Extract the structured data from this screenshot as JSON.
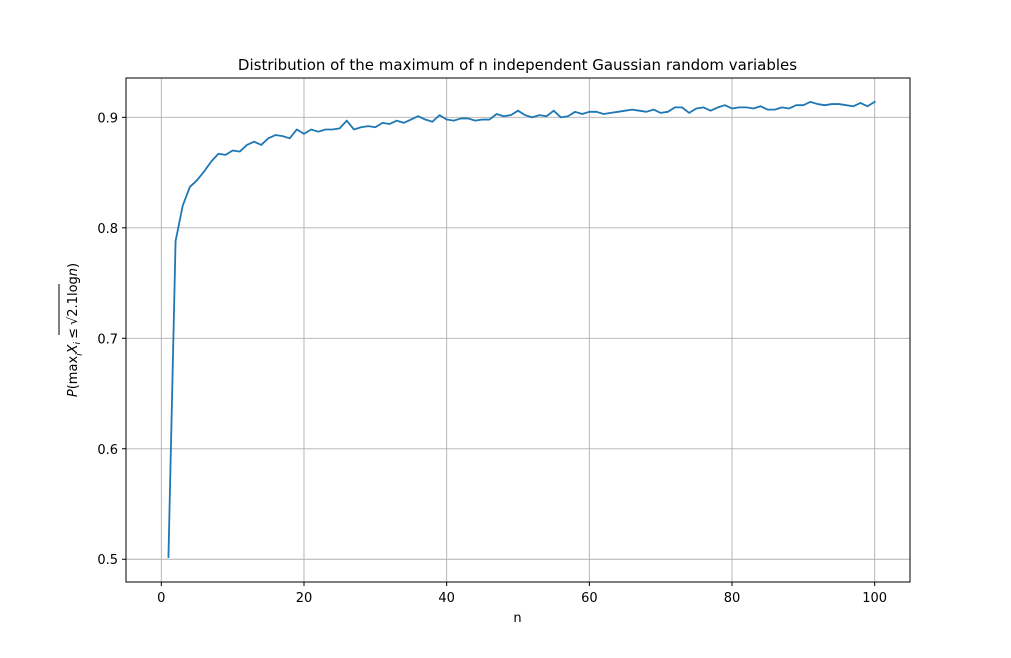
{
  "chart_data": {
    "type": "line",
    "title": "Distribution of the maximum of n independent Gaussian random variables",
    "xlabel": "n",
    "ylabel": {
      "p": "P",
      "open": "(",
      "max": "max",
      "sub_i": "i",
      "x": "X",
      "leq": "≤",
      "sqrt": "√",
      "expr": "2.1log",
      "n": "n",
      "close": ")"
    },
    "xlim": [
      -4.95,
      104.95
    ],
    "ylim": [
      0.4794,
      0.9356
    ],
    "xticks": [
      0,
      20,
      40,
      60,
      80,
      100
    ],
    "xtick_labels": [
      "0",
      "20",
      "40",
      "60",
      "80",
      "100"
    ],
    "yticks": [
      0.5,
      0.6,
      0.7,
      0.8,
      0.9
    ],
    "ytick_labels": [
      "0.5",
      "0.6",
      "0.7",
      "0.8",
      "0.9"
    ],
    "grid": true,
    "colors": {
      "line": "#1f77b4",
      "grid": "#b0b0b0",
      "axes": "#000000"
    },
    "series": [
      {
        "x": [
          1,
          2,
          3,
          4,
          5,
          6,
          7,
          8,
          9,
          10,
          11,
          12,
          13,
          14,
          15,
          16,
          17,
          18,
          19,
          20,
          21,
          22,
          23,
          24,
          25,
          26,
          27,
          28,
          29,
          30,
          31,
          32,
          33,
          34,
          35,
          36,
          37,
          38,
          39,
          40,
          41,
          42,
          43,
          44,
          45,
          46,
          47,
          48,
          49,
          50,
          51,
          52,
          53,
          54,
          55,
          56,
          57,
          58,
          59,
          60,
          61,
          62,
          63,
          64,
          65,
          66,
          67,
          68,
          69,
          70,
          71,
          72,
          73,
          74,
          75,
          76,
          77,
          78,
          79,
          80,
          81,
          82,
          83,
          84,
          85,
          86,
          87,
          88,
          89,
          90,
          91,
          92,
          93,
          94,
          95,
          96,
          97,
          98,
          99,
          100
        ],
        "values": [
          0.502,
          0.788,
          0.82,
          0.837,
          0.843,
          0.851,
          0.86,
          0.867,
          0.866,
          0.87,
          0.869,
          0.875,
          0.878,
          0.875,
          0.881,
          0.884,
          0.883,
          0.881,
          0.889,
          0.885,
          0.889,
          0.887,
          0.889,
          0.889,
          0.89,
          0.897,
          0.889,
          0.891,
          0.892,
          0.891,
          0.895,
          0.894,
          0.897,
          0.895,
          0.898,
          0.901,
          0.898,
          0.896,
          0.902,
          0.898,
          0.897,
          0.899,
          0.899,
          0.897,
          0.898,
          0.898,
          0.903,
          0.901,
          0.902,
          0.906,
          0.902,
          0.9,
          0.902,
          0.901,
          0.906,
          0.9,
          0.901,
          0.905,
          0.903,
          0.905,
          0.905,
          0.903,
          0.904,
          0.905,
          0.906,
          0.907,
          0.906,
          0.905,
          0.907,
          0.904,
          0.905,
          0.909,
          0.909,
          0.904,
          0.908,
          0.909,
          0.906,
          0.909,
          0.911,
          0.908,
          0.909,
          0.909,
          0.908,
          0.91,
          0.907,
          0.907,
          0.909,
          0.908,
          0.911,
          0.911,
          0.914,
          0.912,
          0.911,
          0.912,
          0.912,
          0.911,
          0.91,
          0.913,
          0.91,
          0.914
        ]
      }
    ]
  }
}
